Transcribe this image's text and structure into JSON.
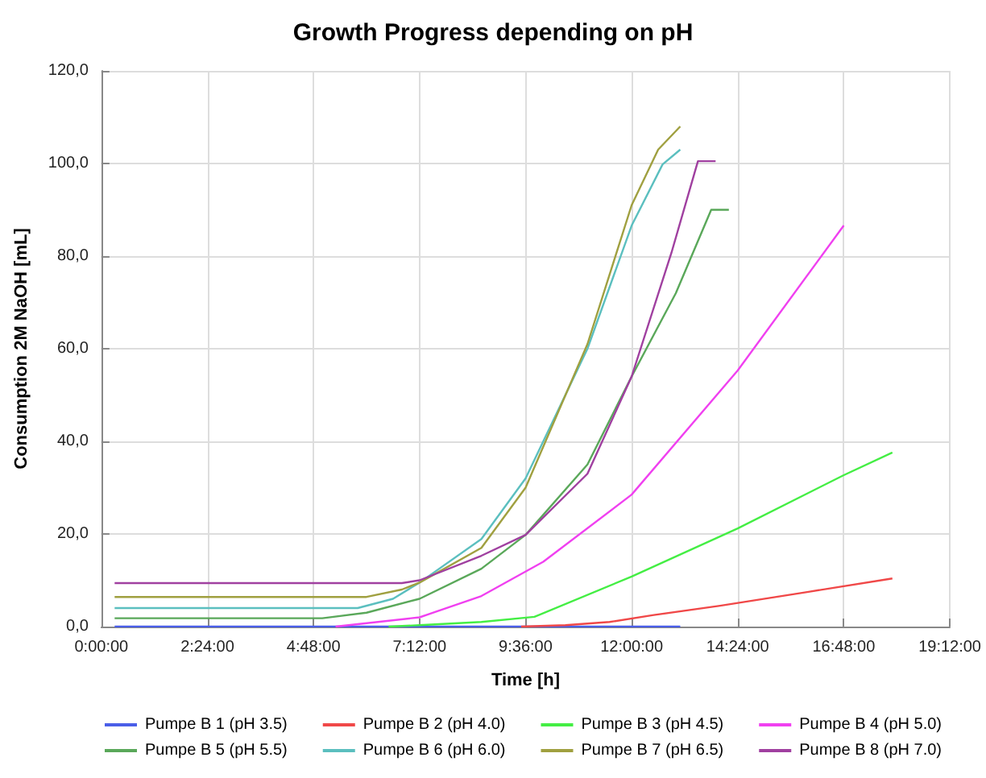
{
  "chart_data": {
    "type": "line",
    "title": "Growth Progress depending on pH",
    "xlabel": "Time [h]",
    "ylabel": "Consumption 2M NaOH [mL]",
    "xlim": [
      0,
      19.2
    ],
    "xticks": [
      {
        "value": 0,
        "label": "0:00:00"
      },
      {
        "value": 2.4,
        "label": "2:24:00"
      },
      {
        "value": 4.8,
        "label": "4:48:00"
      },
      {
        "value": 7.2,
        "label": "7:12:00"
      },
      {
        "value": 9.6,
        "label": "9:36:00"
      },
      {
        "value": 12,
        "label": "12:00:00"
      },
      {
        "value": 14.4,
        "label": "14:24:00"
      },
      {
        "value": 16.8,
        "label": "16:48:00"
      },
      {
        "value": 19.2,
        "label": "19:12:00"
      }
    ],
    "ylim": [
      0,
      120
    ],
    "yticks": [
      {
        "value": 0,
        "label": "0,0"
      },
      {
        "value": 20,
        "label": "20,0"
      },
      {
        "value": 40,
        "label": "40,0"
      },
      {
        "value": 60,
        "label": "60,0"
      },
      {
        "value": 80,
        "label": "80,0"
      },
      {
        "value": 100,
        "label": "100,0"
      },
      {
        "value": 120,
        "label": "120,0"
      }
    ],
    "grid": true,
    "legend": "bottom",
    "marker": "none",
    "line_style": "solid",
    "series": [
      {
        "name": "Pumpe B 1 (pH 3.5)",
        "color": "#4a5ee8",
        "x": [
          0.3,
          13.1
        ],
        "values": [
          0,
          0
        ]
      },
      {
        "name": "Pumpe B 2 (pH 4.0)",
        "color": "#f04848",
        "x": [
          9.5,
          10.5,
          11.5,
          12.5,
          14,
          16,
          17.9
        ],
        "values": [
          0,
          0.3,
          1,
          2.5,
          4.5,
          7.5,
          10.4
        ]
      },
      {
        "name": "Pumpe B 3 (pH 4.5)",
        "color": "#44ee44",
        "x": [
          6.5,
          7.2,
          8.6,
          9.8,
          12,
          14.4,
          16.8,
          17.9
        ],
        "values": [
          0,
          0.3,
          1,
          2.1,
          10.8,
          21.2,
          32.7,
          37.6
        ]
      },
      {
        "name": "Pumpe B 4 (pH 5.0)",
        "color": "#f040f0",
        "x": [
          5.3,
          7.2,
          8.6,
          10,
          12,
          14.4,
          16.8
        ],
        "values": [
          0,
          2,
          6.6,
          14,
          28.5,
          55.3,
          86.6
        ]
      },
      {
        "name": "Pumpe B 5 (pH 5.5)",
        "color": "#5aa85a",
        "x": [
          0.3,
          5,
          6,
          7.2,
          8.6,
          9.6,
          11,
          12,
          13,
          13.8,
          14.2
        ],
        "values": [
          1.8,
          1.8,
          3,
          6,
          12.5,
          19.8,
          35,
          54,
          72,
          90,
          90
        ]
      },
      {
        "name": "Pumpe B 6 (pH 6.0)",
        "color": "#5bbfbf",
        "x": [
          0.3,
          5.8,
          6.6,
          7.2,
          8.6,
          9.6,
          11,
          12,
          12.7,
          13.1
        ],
        "values": [
          4,
          4,
          6,
          9.5,
          18.9,
          32,
          60,
          86.6,
          99.8,
          103
        ]
      },
      {
        "name": "Pumpe B 7 (pH 6.5)",
        "color": "#a0a040",
        "x": [
          0.3,
          6,
          6.8,
          7.2,
          8.6,
          9.6,
          11,
          12,
          12.6,
          13.1
        ],
        "values": [
          6.4,
          6.4,
          8,
          9.5,
          17,
          30,
          61,
          91,
          103,
          108
        ]
      },
      {
        "name": "Pumpe B 8 (pH 7.0)",
        "color": "#a040a0",
        "x": [
          0.3,
          6.8,
          7.2,
          8.6,
          9.6,
          11,
          12,
          12.9,
          13.5,
          13.9
        ],
        "values": [
          9.4,
          9.4,
          10,
          15.3,
          19.8,
          33,
          54,
          80.7,
          100.5,
          100.5
        ]
      }
    ]
  }
}
